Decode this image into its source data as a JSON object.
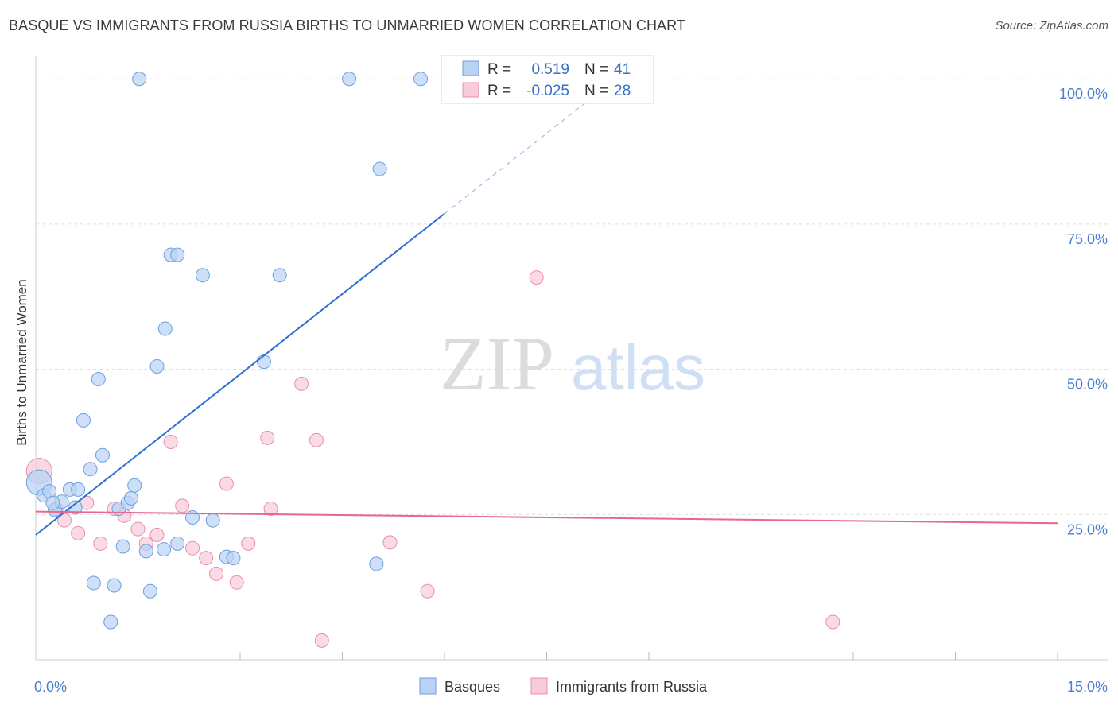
{
  "title": "BASQUE VS IMMIGRANTS FROM RUSSIA BIRTHS TO UNMARRIED WOMEN CORRELATION CHART",
  "source": "Source: ZipAtlas.com",
  "watermark": {
    "zip": "ZIP",
    "atlas": "atlas"
  },
  "colors": {
    "basque_fill": "#b8d3f4",
    "basque_stroke": "#6d9fe0",
    "basque_line": "#2f6fd1",
    "russia_fill": "#f8cbd8",
    "russia_stroke": "#e98fac",
    "russia_line": "#e6678f",
    "tick": "#4a7fd0",
    "grid": "#dddddd"
  },
  "stats": {
    "rows": [
      {
        "r_label": "R =",
        "r_value": "0.519",
        "n_label": "N =",
        "n_value": "41"
      },
      {
        "r_label": "R =",
        "r_value": "-0.025",
        "n_label": "N =",
        "n_value": "28"
      }
    ]
  },
  "chart_data": {
    "type": "scatter",
    "title": "BASQUE VS IMMIGRANTS FROM RUSSIA BIRTHS TO UNMARRIED WOMEN CORRELATION CHART",
    "xlabel": "",
    "ylabel": "Births to Unmarried Women",
    "xlim": [
      0,
      15
    ],
    "ylim": [
      0,
      104
    ],
    "x_tick_labels": [
      "0.0%",
      "15.0%"
    ],
    "y_ticks": [
      25,
      50,
      75,
      100
    ],
    "y_tick_labels": [
      "25.0%",
      "50.0%",
      "75.0%",
      "100.0%"
    ],
    "legend": [
      "Basques",
      "Immigrants from Russia"
    ],
    "series": [
      {
        "name": "Basques",
        "points": [
          {
            "x": 0.05,
            "y": 30.5,
            "big": true
          },
          {
            "x": 0.12,
            "y": 28.3
          },
          {
            "x": 0.2,
            "y": 29.0
          },
          {
            "x": 0.28,
            "y": 25.8
          },
          {
            "x": 0.38,
            "y": 27.2
          },
          {
            "x": 0.5,
            "y": 29.3
          },
          {
            "x": 0.58,
            "y": 26.2
          },
          {
            "x": 0.62,
            "y": 29.3
          },
          {
            "x": 0.7,
            "y": 41.2
          },
          {
            "x": 0.8,
            "y": 32.8
          },
          {
            "x": 0.85,
            "y": 13.2
          },
          {
            "x": 0.92,
            "y": 48.3
          },
          {
            "x": 0.98,
            "y": 35.2
          },
          {
            "x": 1.15,
            "y": 12.8
          },
          {
            "x": 1.1,
            "y": 6.5
          },
          {
            "x": 1.22,
            "y": 26.0
          },
          {
            "x": 1.28,
            "y": 19.5
          },
          {
            "x": 1.35,
            "y": 27.0
          },
          {
            "x": 1.4,
            "y": 27.8
          },
          {
            "x": 1.45,
            "y": 30.0
          },
          {
            "x": 1.52,
            "y": 100.0
          },
          {
            "x": 1.62,
            "y": 18.7
          },
          {
            "x": 1.68,
            "y": 11.8
          },
          {
            "x": 1.78,
            "y": 50.5
          },
          {
            "x": 1.88,
            "y": 19.0
          },
          {
            "x": 1.9,
            "y": 57.0
          },
          {
            "x": 1.98,
            "y": 69.7
          },
          {
            "x": 2.08,
            "y": 69.7
          },
          {
            "x": 2.08,
            "y": 20.0
          },
          {
            "x": 2.3,
            "y": 24.5
          },
          {
            "x": 2.45,
            "y": 66.2
          },
          {
            "x": 2.6,
            "y": 24.0
          },
          {
            "x": 2.8,
            "y": 17.7
          },
          {
            "x": 2.9,
            "y": 17.5
          },
          {
            "x": 3.35,
            "y": 51.3
          },
          {
            "x": 3.58,
            "y": 66.2
          },
          {
            "x": 4.6,
            "y": 100.0
          },
          {
            "x": 5.0,
            "y": 16.5
          },
          {
            "x": 5.05,
            "y": 84.5
          },
          {
            "x": 5.65,
            "y": 100.0
          },
          {
            "x": 0.25,
            "y": 27.0
          }
        ]
      },
      {
        "name": "Immigrants from Russia",
        "points": [
          {
            "x": 0.05,
            "y": 32.5,
            "big": true
          },
          {
            "x": 0.3,
            "y": 26.0
          },
          {
            "x": 0.42,
            "y": 24.0
          },
          {
            "x": 0.62,
            "y": 21.8
          },
          {
            "x": 0.75,
            "y": 27.0
          },
          {
            "x": 0.95,
            "y": 20.0
          },
          {
            "x": 1.15,
            "y": 26.0
          },
          {
            "x": 1.3,
            "y": 24.8
          },
          {
            "x": 1.5,
            "y": 22.5
          },
          {
            "x": 1.62,
            "y": 20.0
          },
          {
            "x": 1.78,
            "y": 21.5
          },
          {
            "x": 1.98,
            "y": 37.5
          },
          {
            "x": 2.15,
            "y": 26.5
          },
          {
            "x": 2.3,
            "y": 19.2
          },
          {
            "x": 2.5,
            "y": 17.5
          },
          {
            "x": 2.65,
            "y": 14.8
          },
          {
            "x": 2.8,
            "y": 30.3
          },
          {
            "x": 2.95,
            "y": 13.3
          },
          {
            "x": 3.12,
            "y": 20.0
          },
          {
            "x": 3.4,
            "y": 38.2
          },
          {
            "x": 3.45,
            "y": 26.0
          },
          {
            "x": 3.9,
            "y": 47.5
          },
          {
            "x": 4.12,
            "y": 37.8
          },
          {
            "x": 4.2,
            "y": 3.3
          },
          {
            "x": 5.2,
            "y": 20.2
          },
          {
            "x": 5.75,
            "y": 11.8
          },
          {
            "x": 7.35,
            "y": 65.8
          },
          {
            "x": 11.7,
            "y": 6.5
          }
        ]
      }
    ],
    "trendlines": [
      {
        "series": "Basques",
        "x0": 0.0,
        "y0": 21.5,
        "x1": 6.0,
        "y1": 76.8,
        "dashed_to_x": 8.3,
        "dashed_to_y": 98.0
      },
      {
        "series": "Immigrants from Russia",
        "x0": 0.0,
        "y0": 25.5,
        "x1": 15.0,
        "y1": 23.5
      }
    ]
  }
}
